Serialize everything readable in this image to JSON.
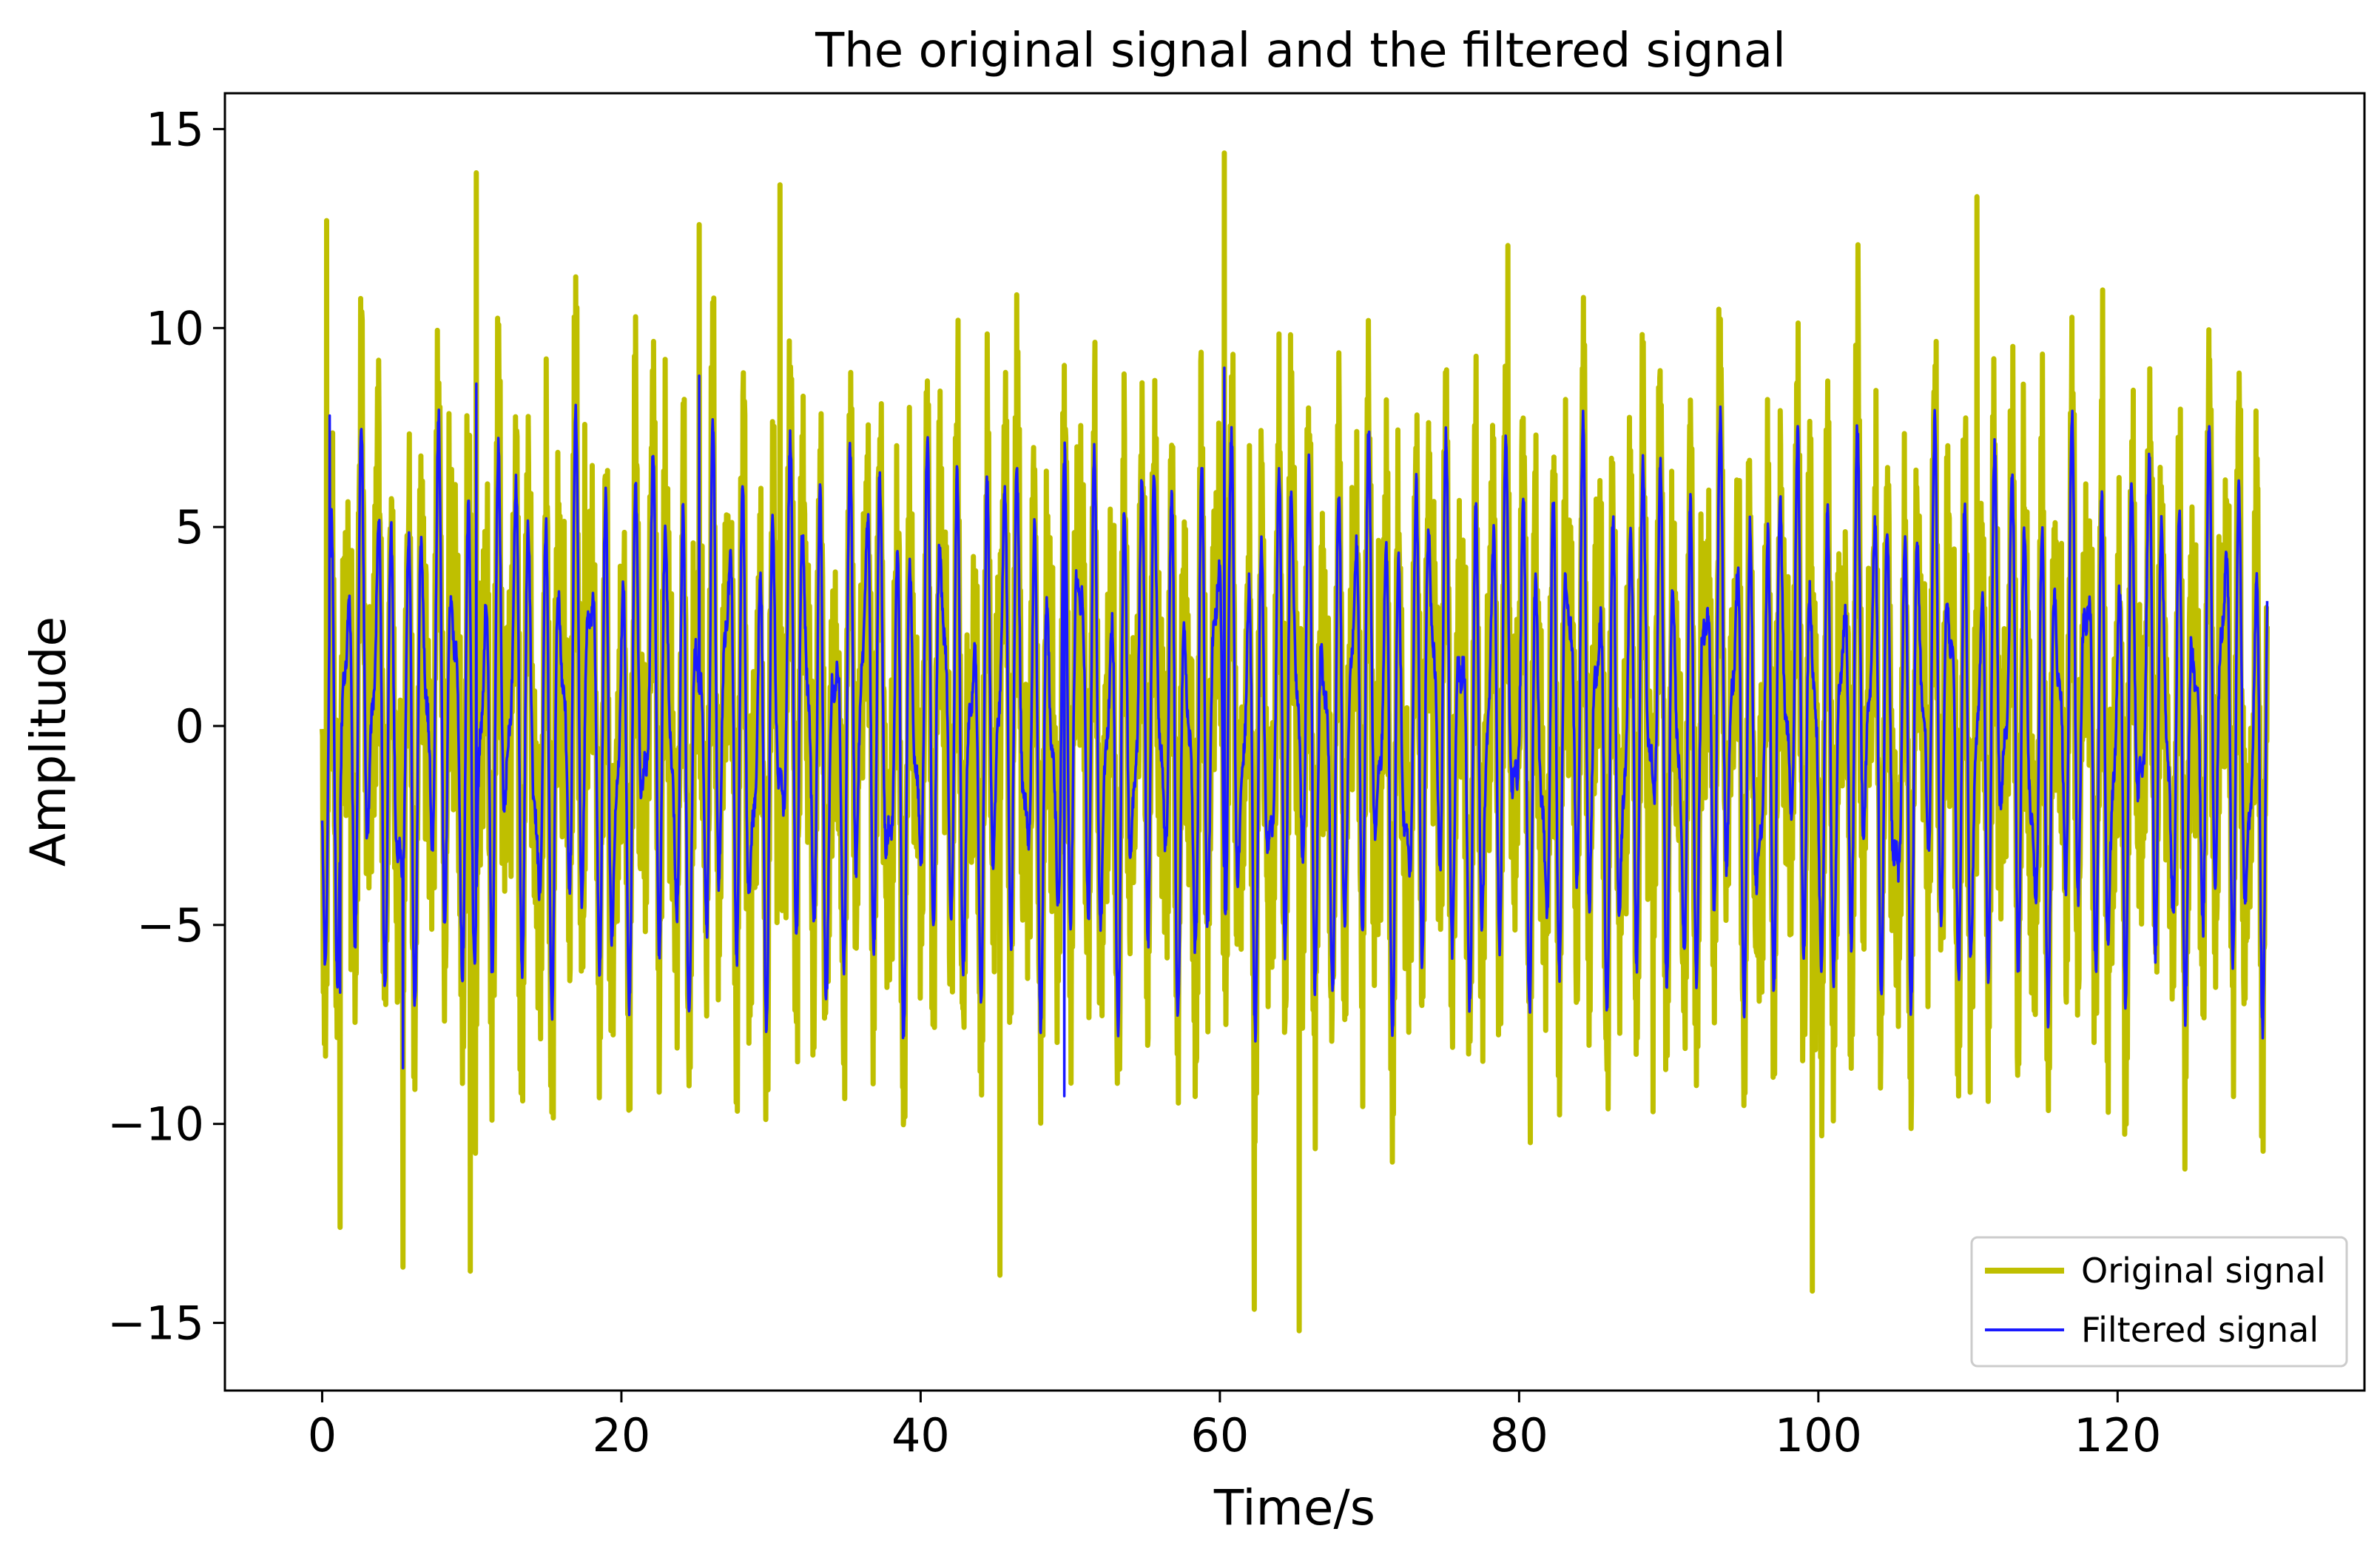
{
  "chart_data": {
    "type": "line",
    "title": "The original signal and the filtered signal",
    "xlabel": "Time/s",
    "ylabel": "Amplitude",
    "xlim": [
      -6.5,
      136.5
    ],
    "ylim": [
      -16.7,
      15.9
    ],
    "xticks": [
      0,
      20,
      40,
      60,
      80,
      100,
      120
    ],
    "yticks": [
      15,
      10,
      5,
      0,
      -5,
      -10,
      -15
    ],
    "xtick_labels": [
      "0",
      "20",
      "40",
      "60",
      "80",
      "100",
      "120"
    ],
    "ytick_labels": [
      "15",
      "10",
      "5",
      "0",
      "−5",
      "−10",
      "−15"
    ],
    "grid": false,
    "legend_position": "bottom-right",
    "x_range": [
      0,
      130
    ],
    "series": [
      {
        "name": "Original signal",
        "color": "#bfbf00",
        "approx_range": [
          -15.2,
          14.4
        ],
        "extrema": [
          {
            "x": 0.3,
            "y": 12.7
          },
          {
            "x": 1.2,
            "y": -12.6
          },
          {
            "x": 5.4,
            "y": -13.6
          },
          {
            "x": 9.9,
            "y": -13.7
          },
          {
            "x": 10.3,
            "y": 13.9
          },
          {
            "x": 25.2,
            "y": 12.6
          },
          {
            "x": 30.6,
            "y": 13.6
          },
          {
            "x": 45.3,
            "y": -13.8
          },
          {
            "x": 60.3,
            "y": 14.4
          },
          {
            "x": 65.3,
            "y": -15.2
          },
          {
            "x": 99.6,
            "y": -14.2
          },
          {
            "x": 110.6,
            "y": 13.3
          }
        ]
      },
      {
        "name": "Filtered signal",
        "color": "#1a1aff",
        "approx_range": [
          -9.3,
          9.0
        ],
        "extrema": [
          {
            "x": 0.5,
            "y": 7.8
          },
          {
            "x": 1.2,
            "y": -6.7
          },
          {
            "x": 5.4,
            "y": -8.6
          },
          {
            "x": 10.3,
            "y": 8.6
          },
          {
            "x": 25.2,
            "y": 8.8
          },
          {
            "x": 49.6,
            "y": -9.3
          },
          {
            "x": 60.3,
            "y": 9.0
          }
        ]
      }
    ]
  }
}
